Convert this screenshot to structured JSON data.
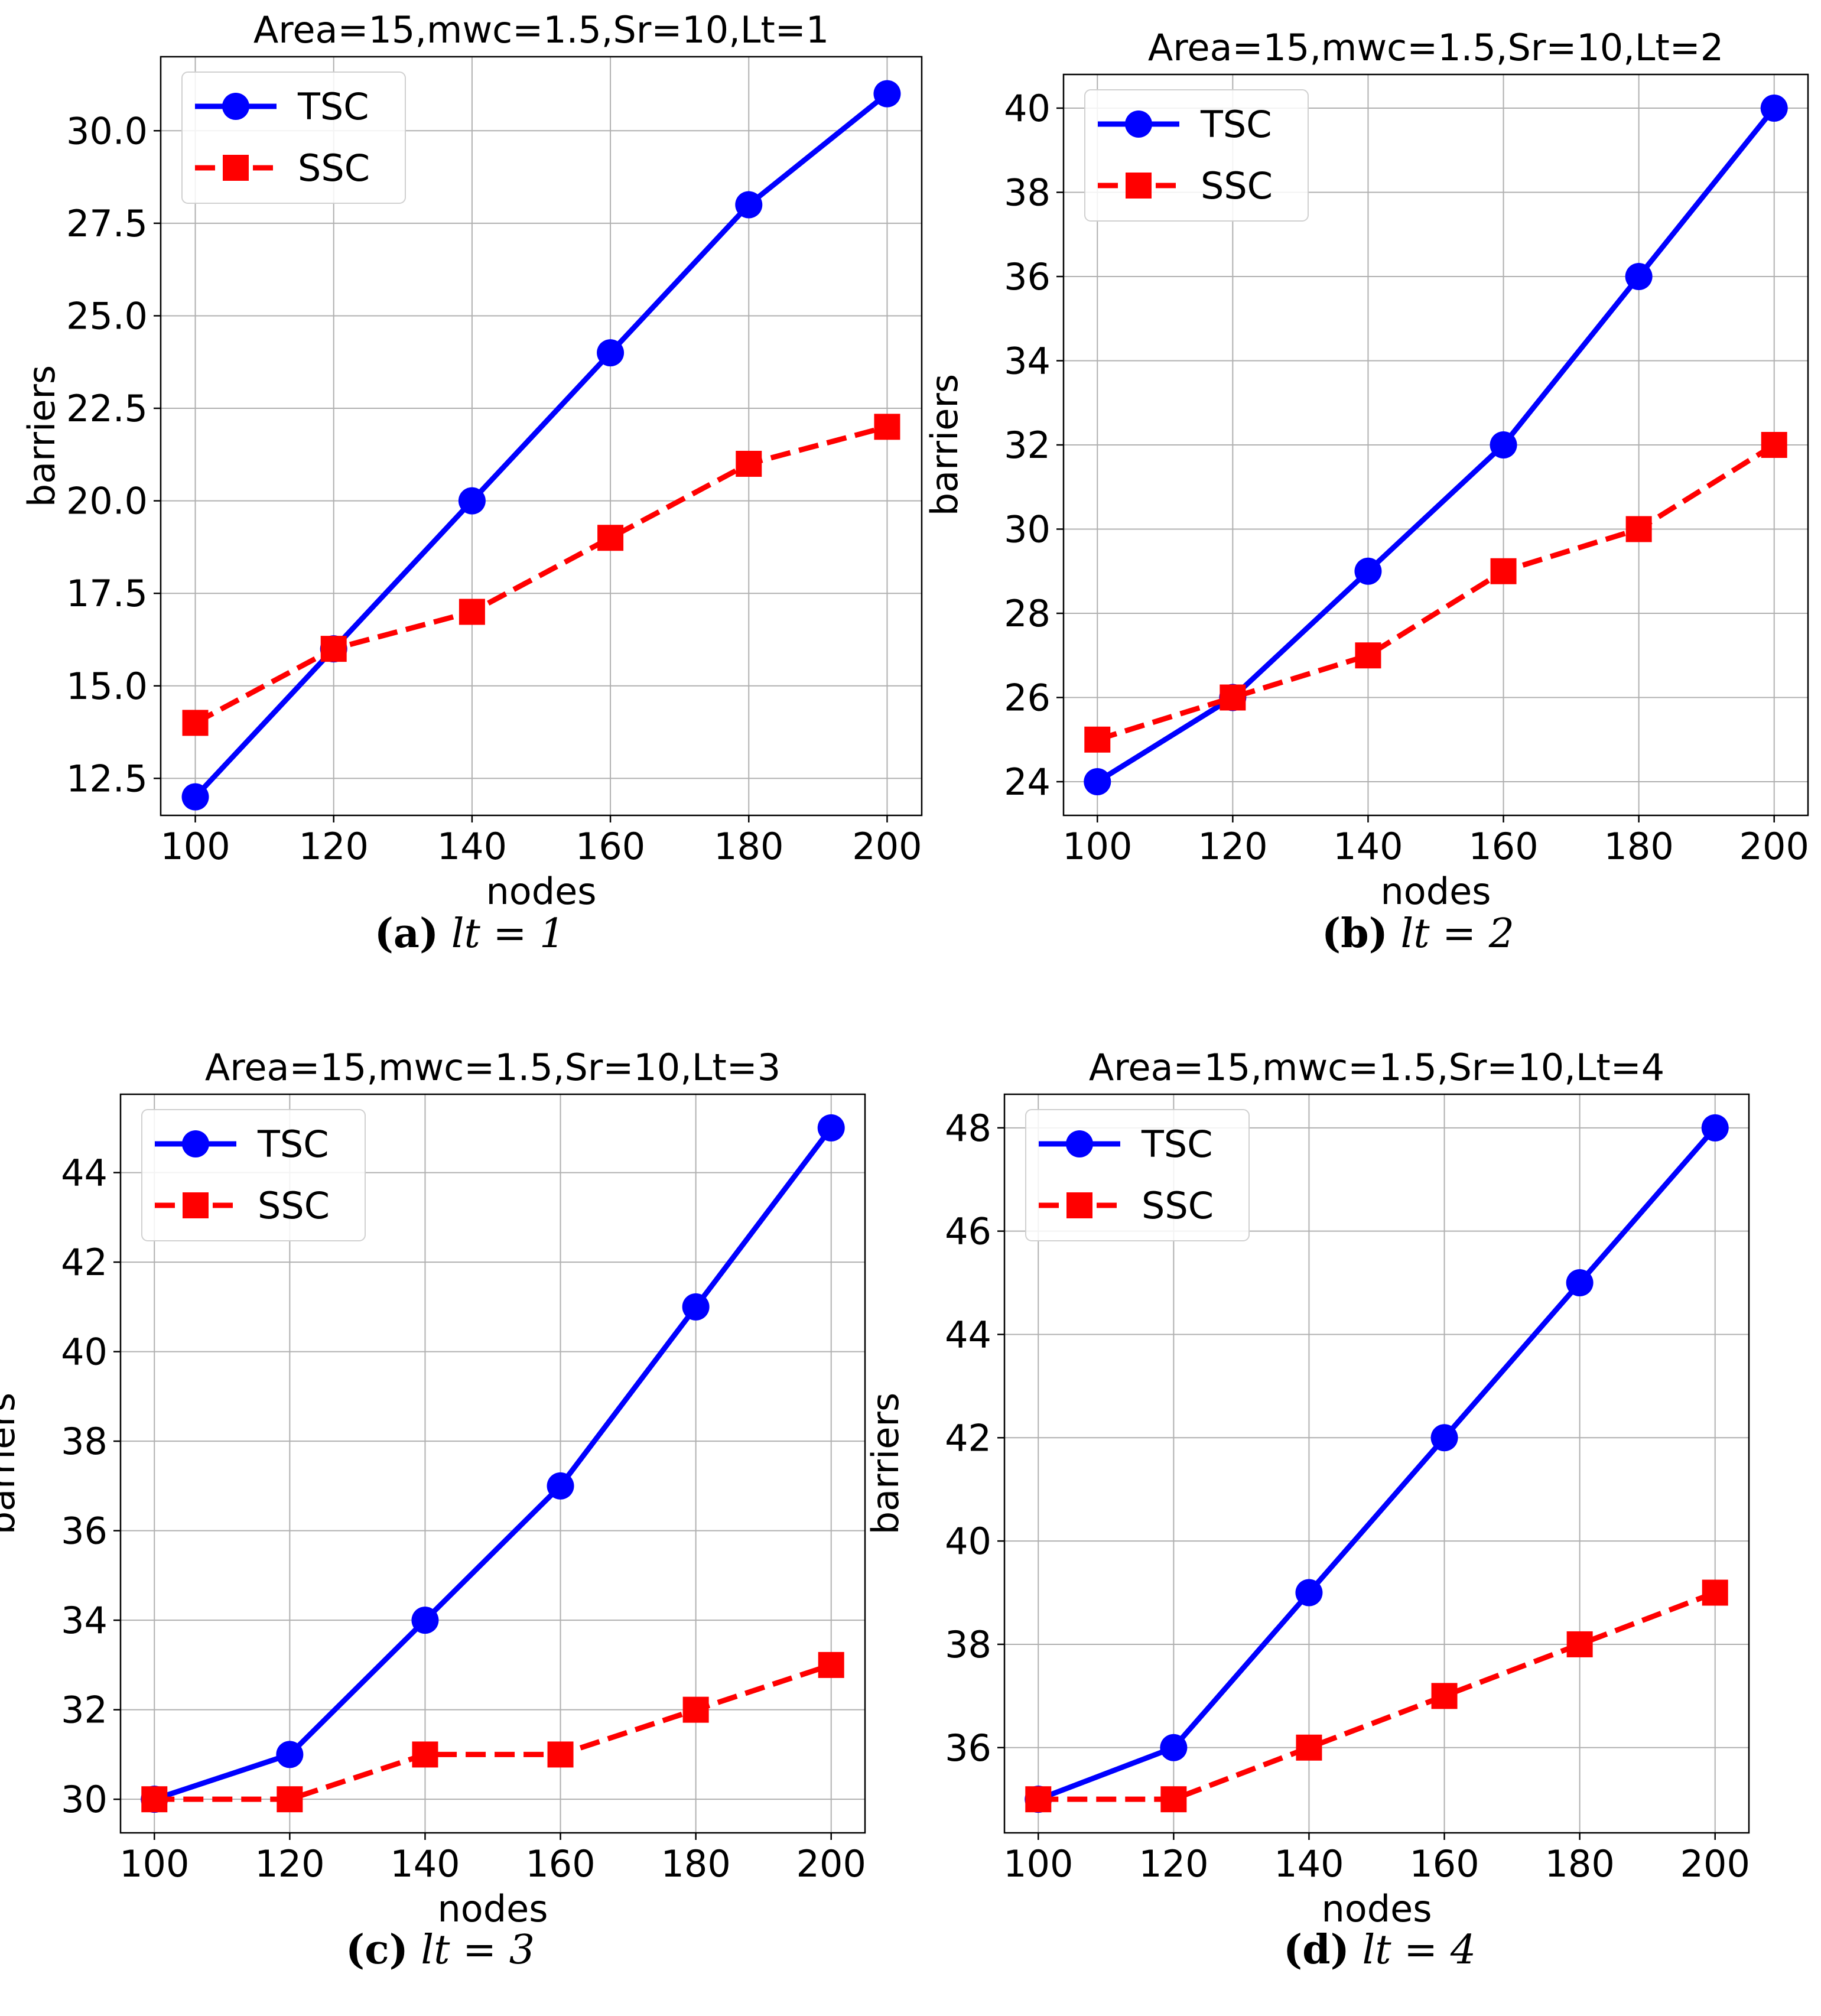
{
  "chart_data": [
    {
      "type": "line",
      "title": "Area=15,mwc=1.5,Sr=10,Lt=1",
      "caption": {
        "tag": "(a)",
        "expr": "lt = 1"
      },
      "xlabel": "nodes",
      "ylabel": "barriers",
      "x": [
        100,
        120,
        140,
        160,
        180,
        200
      ],
      "xlim": [
        95,
        205
      ],
      "ylim": [
        11.5,
        32.0
      ],
      "yticks": [
        12.5,
        15.0,
        17.5,
        20.0,
        22.5,
        25.0,
        27.5,
        30.0
      ],
      "ytick_decimals": 1,
      "grid": true,
      "legend": "top-left",
      "series": [
        {
          "name": "TSC",
          "color": "#0000ff",
          "style": "solid",
          "marker": "circle",
          "values": [
            12,
            16,
            20,
            24,
            28,
            31
          ]
        },
        {
          "name": "SSC",
          "color": "#ff0000",
          "style": "dashed",
          "marker": "square",
          "values": [
            14,
            16,
            17,
            19,
            21,
            22
          ]
        }
      ]
    },
    {
      "type": "line",
      "title": "Area=15,mwc=1.5,Sr=10,Lt=2",
      "caption": {
        "tag": "(b)",
        "expr": "lt = 2"
      },
      "xlabel": "nodes",
      "ylabel": "barriers",
      "x": [
        100,
        120,
        140,
        160,
        180,
        200
      ],
      "xlim": [
        95,
        205
      ],
      "ylim": [
        23.2,
        40.8
      ],
      "yticks": [
        24,
        26,
        28,
        30,
        32,
        34,
        36,
        38,
        40
      ],
      "ytick_decimals": 0,
      "grid": true,
      "legend": "top-left",
      "series": [
        {
          "name": "TSC",
          "color": "#0000ff",
          "style": "solid",
          "marker": "circle",
          "values": [
            24,
            26,
            29,
            32,
            36,
            40
          ]
        },
        {
          "name": "SSC",
          "color": "#ff0000",
          "style": "dashed",
          "marker": "square",
          "values": [
            25,
            26,
            27,
            29,
            30,
            32
          ]
        }
      ]
    },
    {
      "type": "line",
      "title": "Area=15,mwc=1.5,Sr=10,Lt=3",
      "caption": {
        "tag": "(c)",
        "expr": "lt = 3"
      },
      "xlabel": "nodes",
      "ylabel": "barriers",
      "x": [
        100,
        120,
        140,
        160,
        180,
        200
      ],
      "xlim": [
        95,
        205
      ],
      "ylim": [
        29.25,
        45.75
      ],
      "yticks": [
        30,
        32,
        34,
        36,
        38,
        40,
        42,
        44
      ],
      "ytick_decimals": 0,
      "grid": true,
      "legend": "top-left",
      "series": [
        {
          "name": "TSC",
          "color": "#0000ff",
          "style": "solid",
          "marker": "circle",
          "values": [
            30,
            31,
            34,
            37,
            41,
            45
          ]
        },
        {
          "name": "SSC",
          "color": "#ff0000",
          "style": "dashed",
          "marker": "square",
          "values": [
            30,
            30,
            31,
            31,
            32,
            33
          ]
        }
      ]
    },
    {
      "type": "line",
      "title": "Area=15,mwc=1.5,Sr=10,Lt=4",
      "caption": {
        "tag": "(d)",
        "expr": "lt = 4"
      },
      "xlabel": "nodes",
      "ylabel": "barriers",
      "x": [
        100,
        120,
        140,
        160,
        180,
        200
      ],
      "xlim": [
        95,
        205
      ],
      "ylim": [
        34.35,
        48.65
      ],
      "yticks": [
        36,
        38,
        40,
        42,
        44,
        46,
        48
      ],
      "ytick_decimals": 0,
      "grid": true,
      "legend": "top-left",
      "series": [
        {
          "name": "TSC",
          "color": "#0000ff",
          "style": "solid",
          "marker": "circle",
          "values": [
            35,
            36,
            39,
            42,
            45,
            48
          ]
        },
        {
          "name": "SSC",
          "color": "#ff0000",
          "style": "dashed",
          "marker": "square",
          "values": [
            35,
            35,
            36,
            37,
            38,
            39
          ]
        }
      ]
    }
  ]
}
